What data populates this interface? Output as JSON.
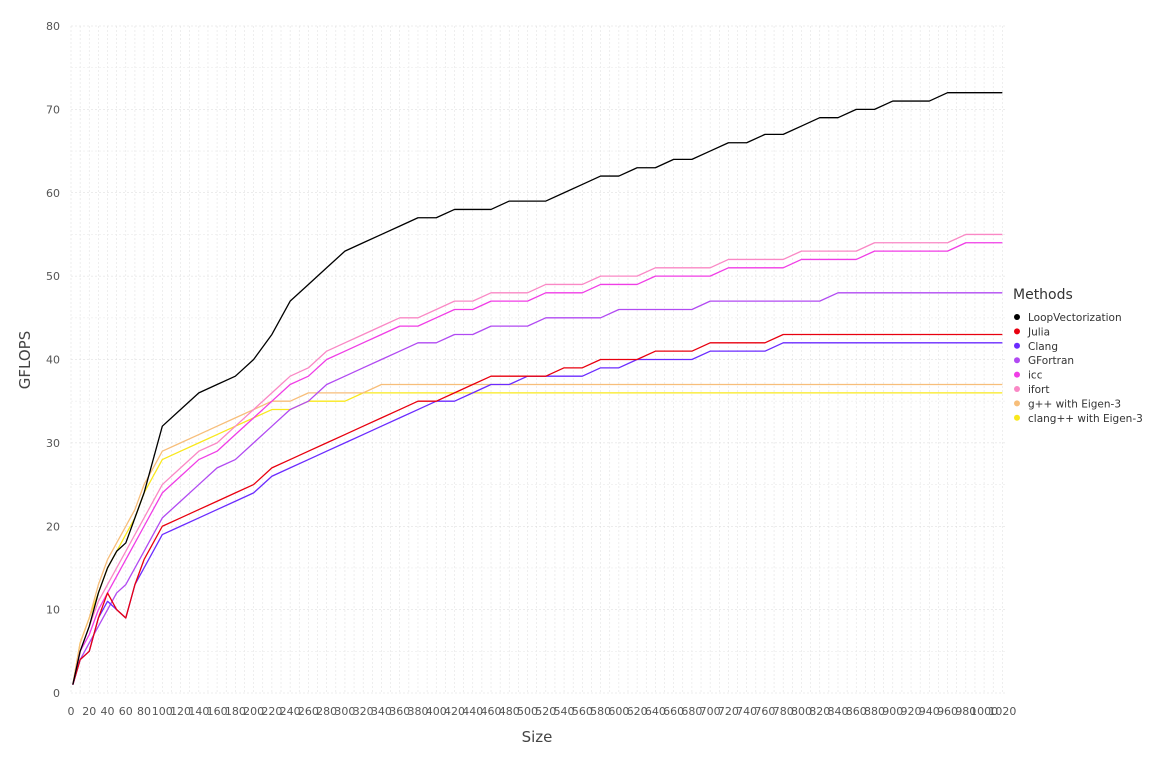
{
  "chart_data": {
    "type": "line",
    "title": "",
    "xlabel": "Size",
    "ylabel": "GFLOPS",
    "xlim": [
      0,
      1024
    ],
    "ylim": [
      0,
      80
    ],
    "grid": true,
    "legend_title": "Methods",
    "legend_position": "right",
    "x_ticks": [
      0,
      20,
      40,
      60,
      80,
      100,
      120,
      140,
      160,
      180,
      200,
      220,
      240,
      260,
      280,
      300,
      320,
      340,
      360,
      380,
      400,
      420,
      440,
      460,
      480,
      500,
      520,
      540,
      560,
      580,
      600,
      620,
      640,
      660,
      680,
      700,
      720,
      740,
      760,
      780,
      800,
      820,
      840,
      860,
      880,
      900,
      920,
      940,
      960,
      980,
      1000,
      1020
    ],
    "y_ticks": [
      0,
      10,
      20,
      30,
      40,
      50,
      60,
      70,
      80
    ],
    "series": [
      {
        "name": "LoopVectorization",
        "color": "#000000",
        "x": [
          2,
          10,
          20,
          30,
          40,
          50,
          60,
          70,
          80,
          90,
          100,
          120,
          140,
          160,
          180,
          200,
          220,
          240,
          260,
          280,
          300,
          320,
          340,
          360,
          380,
          400,
          420,
          440,
          460,
          480,
          500,
          520,
          540,
          560,
          580,
          600,
          620,
          640,
          660,
          680,
          700,
          720,
          740,
          760,
          780,
          800,
          820,
          840,
          860,
          880,
          900,
          920,
          940,
          960,
          980,
          1000,
          1020
        ],
        "y": [
          1,
          5,
          8,
          12,
          15,
          17,
          18,
          21,
          24,
          28,
          32,
          34,
          36,
          37,
          38,
          40,
          43,
          47,
          49,
          51,
          53,
          54,
          55,
          56,
          57,
          57,
          58,
          58,
          58,
          59,
          59,
          59,
          60,
          61,
          62,
          62,
          63,
          63,
          64,
          64,
          65,
          66,
          66,
          67,
          67,
          68,
          69,
          69,
          70,
          70,
          71,
          71,
          71,
          72,
          72,
          72,
          72
        ]
      },
      {
        "name": "Julia",
        "color": "#e8000f",
        "x": [
          2,
          10,
          20,
          30,
          40,
          50,
          60,
          70,
          80,
          90,
          100,
          120,
          140,
          160,
          180,
          200,
          220,
          240,
          260,
          280,
          300,
          320,
          340,
          360,
          380,
          400,
          420,
          440,
          460,
          480,
          500,
          520,
          540,
          560,
          580,
          600,
          620,
          640,
          660,
          680,
          700,
          720,
          740,
          760,
          780,
          800,
          820,
          840,
          860,
          880,
          900,
          920,
          940,
          960,
          980,
          1000,
          1020
        ],
        "y": [
          1,
          4,
          5,
          9,
          12,
          10,
          9,
          13,
          16,
          18,
          20,
          21,
          22,
          23,
          24,
          25,
          27,
          28,
          29,
          30,
          31,
          32,
          33,
          34,
          35,
          35,
          36,
          37,
          38,
          38,
          38,
          38,
          39,
          39,
          40,
          40,
          40,
          41,
          41,
          41,
          42,
          42,
          42,
          42,
          43,
          43,
          43,
          43,
          43,
          43,
          43,
          43,
          43,
          43,
          43,
          43,
          43
        ]
      },
      {
        "name": "Clang",
        "color": "#6b2bff",
        "x": [
          2,
          10,
          20,
          30,
          40,
          50,
          60,
          70,
          80,
          90,
          100,
          120,
          140,
          160,
          180,
          200,
          220,
          240,
          260,
          280,
          300,
          320,
          340,
          360,
          380,
          400,
          420,
          440,
          460,
          480,
          500,
          520,
          540,
          560,
          580,
          600,
          620,
          640,
          660,
          680,
          700,
          720,
          740,
          760,
          780,
          800,
          820,
          840,
          860,
          880,
          900,
          920,
          940,
          960,
          980,
          1000,
          1020
        ],
        "y": [
          1,
          4,
          5,
          9,
          11,
          10,
          9,
          13,
          15,
          17,
          19,
          20,
          21,
          22,
          23,
          24,
          26,
          27,
          28,
          29,
          30,
          31,
          32,
          33,
          34,
          35,
          35,
          36,
          37,
          37,
          38,
          38,
          38,
          38,
          39,
          39,
          40,
          40,
          40,
          40,
          41,
          41,
          41,
          41,
          42,
          42,
          42,
          42,
          42,
          42,
          42,
          42,
          42,
          42,
          42,
          42,
          42
        ]
      },
      {
        "name": "GFortran",
        "color": "#b14af2",
        "x": [
          2,
          10,
          20,
          30,
          40,
          50,
          60,
          70,
          80,
          90,
          100,
          120,
          140,
          160,
          180,
          200,
          220,
          240,
          260,
          280,
          300,
          320,
          340,
          360,
          380,
          400,
          420,
          440,
          460,
          480,
          500,
          520,
          540,
          560,
          580,
          600,
          620,
          640,
          660,
          680,
          700,
          720,
          740,
          760,
          780,
          800,
          820,
          840,
          860,
          880,
          900,
          920,
          940,
          960,
          980,
          1000,
          1020
        ],
        "y": [
          1,
          4,
          6,
          8,
          10,
          12,
          13,
          15,
          17,
          19,
          21,
          23,
          25,
          27,
          28,
          30,
          32,
          34,
          35,
          37,
          38,
          39,
          40,
          41,
          42,
          42,
          43,
          43,
          44,
          44,
          44,
          45,
          45,
          45,
          45,
          46,
          46,
          46,
          46,
          46,
          47,
          47,
          47,
          47,
          47,
          47,
          47,
          48,
          48,
          48,
          48,
          48,
          48,
          48,
          48,
          48,
          48
        ]
      },
      {
        "name": "icc",
        "color": "#f03de6",
        "x": [
          2,
          10,
          20,
          30,
          40,
          50,
          60,
          70,
          80,
          90,
          100,
          120,
          140,
          160,
          180,
          200,
          220,
          240,
          260,
          280,
          300,
          320,
          340,
          360,
          380,
          400,
          420,
          440,
          460,
          480,
          500,
          520,
          540,
          560,
          580,
          600,
          620,
          640,
          660,
          680,
          700,
          720,
          740,
          760,
          780,
          800,
          820,
          840,
          860,
          880,
          900,
          920,
          940,
          960,
          980,
          1000,
          1020
        ],
        "y": [
          1,
          5,
          7,
          10,
          12,
          14,
          16,
          18,
          20,
          22,
          24,
          26,
          28,
          29,
          31,
          33,
          35,
          37,
          38,
          40,
          41,
          42,
          43,
          44,
          44,
          45,
          46,
          46,
          47,
          47,
          47,
          48,
          48,
          48,
          49,
          49,
          49,
          50,
          50,
          50,
          50,
          51,
          51,
          51,
          51,
          52,
          52,
          52,
          52,
          53,
          53,
          53,
          53,
          53,
          54,
          54,
          54
        ]
      },
      {
        "name": "ifort",
        "color": "#fa88c5",
        "x": [
          2,
          10,
          20,
          30,
          40,
          50,
          60,
          70,
          80,
          90,
          100,
          120,
          140,
          160,
          180,
          200,
          220,
          240,
          260,
          280,
          300,
          320,
          340,
          360,
          380,
          400,
          420,
          440,
          460,
          480,
          500,
          520,
          540,
          560,
          580,
          600,
          620,
          640,
          660,
          680,
          700,
          720,
          740,
          760,
          780,
          800,
          820,
          840,
          860,
          880,
          900,
          920,
          940,
          960,
          980,
          1000,
          1020
        ],
        "y": [
          1,
          5,
          8,
          11,
          13,
          15,
          17,
          19,
          21,
          23,
          25,
          27,
          29,
          30,
          32,
          34,
          36,
          38,
          39,
          41,
          42,
          43,
          44,
          45,
          45,
          46,
          47,
          47,
          48,
          48,
          48,
          49,
          49,
          49,
          50,
          50,
          50,
          51,
          51,
          51,
          51,
          52,
          52,
          52,
          52,
          53,
          53,
          53,
          53,
          54,
          54,
          54,
          54,
          54,
          55,
          55,
          55
        ]
      },
      {
        "name": "g++ with Eigen-3",
        "color": "#f7be7a",
        "x": [
          2,
          10,
          20,
          30,
          40,
          50,
          60,
          70,
          80,
          90,
          100,
          120,
          140,
          160,
          180,
          200,
          220,
          240,
          260,
          280,
          300,
          320,
          340,
          360,
          380,
          400,
          420,
          440,
          460,
          480,
          500,
          520,
          540,
          560,
          580,
          600,
          620,
          640,
          660,
          680,
          700,
          720,
          740,
          760,
          780,
          800,
          820,
          840,
          860,
          880,
          900,
          920,
          940,
          960,
          980,
          1000,
          1020
        ],
        "y": [
          1,
          6,
          9,
          13,
          16,
          18,
          20,
          22,
          25,
          27,
          29,
          30,
          31,
          32,
          33,
          34,
          35,
          35,
          36,
          36,
          36,
          36,
          37,
          37,
          37,
          37,
          37,
          37,
          37,
          37,
          37,
          37,
          37,
          37,
          37,
          37,
          37,
          37,
          37,
          37,
          37,
          37,
          37,
          37,
          37,
          37,
          37,
          37,
          37,
          37,
          37,
          37,
          37,
          37,
          37,
          37,
          37
        ]
      },
      {
        "name": "clang++ with Eigen-3",
        "color": "#f9e81c",
        "x": [
          2,
          10,
          20,
          30,
          40,
          50,
          60,
          70,
          80,
          90,
          100,
          120,
          140,
          160,
          180,
          200,
          220,
          240,
          260,
          280,
          300,
          320,
          340,
          360,
          380,
          400,
          420,
          440,
          460,
          480,
          500,
          520,
          540,
          560,
          580,
          600,
          620,
          640,
          660,
          680,
          700,
          720,
          740,
          760,
          780,
          800,
          820,
          840,
          860,
          880,
          900,
          920,
          940,
          960,
          980,
          1000,
          1020
        ],
        "y": [
          1,
          6,
          9,
          12,
          15,
          17,
          19,
          21,
          24,
          26,
          28,
          29,
          30,
          31,
          32,
          33,
          34,
          34,
          35,
          35,
          35,
          36,
          36,
          36,
          36,
          36,
          36,
          36,
          36,
          36,
          36,
          36,
          36,
          36,
          36,
          36,
          36,
          36,
          36,
          36,
          36,
          36,
          36,
          36,
          36,
          36,
          36,
          36,
          36,
          36,
          36,
          36,
          36,
          36,
          36,
          36,
          36
        ]
      }
    ]
  }
}
